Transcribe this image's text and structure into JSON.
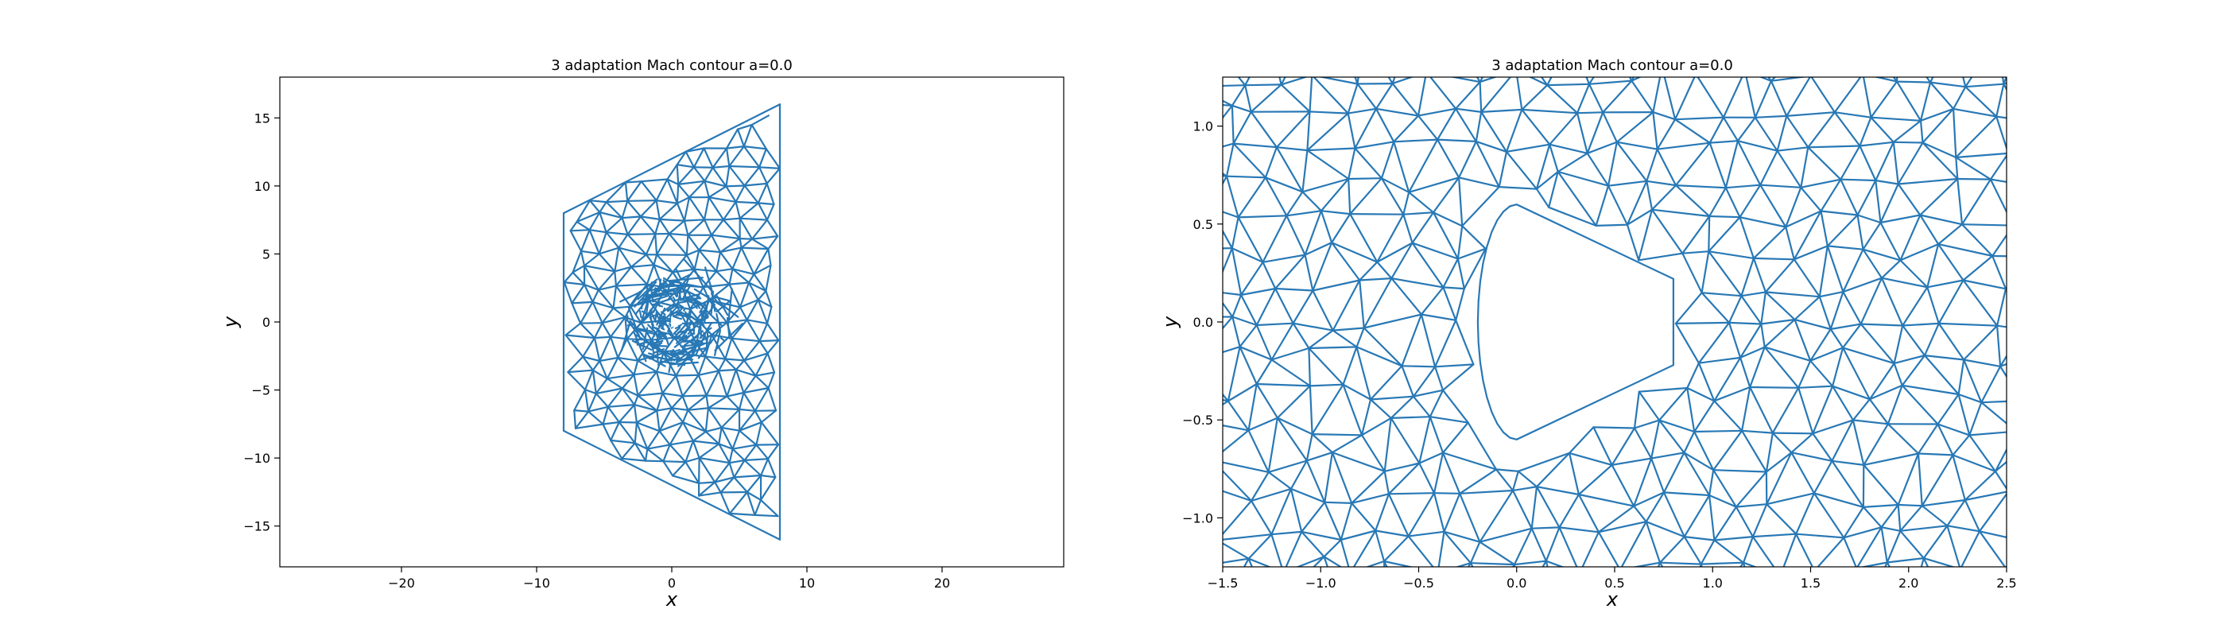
{
  "chart_data": [
    {
      "type": "triangulation-mesh",
      "title": "3 adaptation Mach contour a=0.0",
      "xlabel": "x",
      "ylabel": "y",
      "xlim": [
        -29,
        29
      ],
      "ylim": [
        -18,
        18
      ],
      "xticks": [
        "−20",
        "−10",
        "0",
        "10",
        "20"
      ],
      "xtick_values": [
        -20,
        -10,
        0,
        10,
        20
      ],
      "yticks": [
        "15",
        "10",
        "5",
        "0",
        "−5",
        "−10",
        "−15"
      ],
      "ytick_values": [
        15,
        10,
        5,
        0,
        -5,
        -10,
        -15
      ],
      "color": "#2878b5",
      "domain_outline": [
        [
          -8,
          8
        ],
        [
          8,
          16
        ],
        [
          8,
          -16
        ],
        [
          -8,
          -8
        ]
      ],
      "body_center": [
        0.3,
        0
      ]
    },
    {
      "type": "triangulation-mesh",
      "title": "3 adaptation Mach contour a=0.0",
      "xlabel": "x",
      "ylabel": "y",
      "xlim": [
        -1.5,
        2.5
      ],
      "ylim": [
        -1.25,
        1.25
      ],
      "xticks": [
        "−1.5",
        "−1.0",
        "−0.5",
        "0.0",
        "0.5",
        "1.0",
        "1.5",
        "2.0",
        "2.5"
      ],
      "xtick_values": [
        -1.5,
        -1.0,
        -0.5,
        0.0,
        0.5,
        1.0,
        1.5,
        2.0,
        2.5
      ],
      "yticks": [
        "1.0",
        "0.5",
        "0.0",
        "−0.5",
        "−1.0"
      ],
      "ytick_values": [
        1.0,
        0.5,
        0.0,
        -0.5,
        -1.0
      ],
      "color": "#2878b5",
      "body_outline": [
        [
          0.0,
          0.6
        ],
        [
          0.8,
          0.2
        ],
        [
          0.8,
          -0.2
        ],
        [
          0.0,
          -0.6
        ]
      ]
    }
  ]
}
